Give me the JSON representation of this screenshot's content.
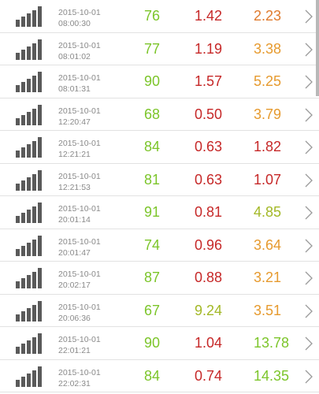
{
  "colors": {
    "green": "#7cc52a",
    "yellow_green": "#a3b826",
    "red": "#c62828",
    "orange": "#e69a2e",
    "icon": "#5a5a5a"
  },
  "icons": {
    "signal": "signal-strength-icon",
    "chevron": "chevron-right-icon"
  },
  "rows": [
    {
      "date": "2015-10-01",
      "time": "08:00:30",
      "v1": "76",
      "v1_color": "#7cc52a",
      "v2": "1.42",
      "v2_color": "#c62828",
      "v3": "2.23",
      "v3_color": "#e07b2e"
    },
    {
      "date": "2015-10-01",
      "time": "08:01:02",
      "v1": "77",
      "v1_color": "#7cc52a",
      "v2": "1.19",
      "v2_color": "#c62828",
      "v3": "3.38",
      "v3_color": "#e69a2e"
    },
    {
      "date": "2015-10-01",
      "time": "08:01:31",
      "v1": "90",
      "v1_color": "#7cc52a",
      "v2": "1.57",
      "v2_color": "#c62828",
      "v3": "5.25",
      "v3_color": "#e69a2e"
    },
    {
      "date": "2015-10-01",
      "time": "12:20:47",
      "v1": "68",
      "v1_color": "#7cc52a",
      "v2": "0.50",
      "v2_color": "#c62828",
      "v3": "3.79",
      "v3_color": "#e69a2e"
    },
    {
      "date": "2015-10-01",
      "time": "12:21:21",
      "v1": "84",
      "v1_color": "#7cc52a",
      "v2": "0.63",
      "v2_color": "#c62828",
      "v3": "1.82",
      "v3_color": "#c62828"
    },
    {
      "date": "2015-10-01",
      "time": "12:21:53",
      "v1": "81",
      "v1_color": "#7cc52a",
      "v2": "0.63",
      "v2_color": "#c62828",
      "v3": "1.07",
      "v3_color": "#c62828"
    },
    {
      "date": "2015-10-01",
      "time": "20:01:14",
      "v1": "91",
      "v1_color": "#7cc52a",
      "v2": "0.81",
      "v2_color": "#c62828",
      "v3": "4.85",
      "v3_color": "#a3b826"
    },
    {
      "date": "2015-10-01",
      "time": "20:01:47",
      "v1": "74",
      "v1_color": "#7cc52a",
      "v2": "0.96",
      "v2_color": "#c62828",
      "v3": "3.64",
      "v3_color": "#e69a2e"
    },
    {
      "date": "2015-10-01",
      "time": "20:02:17",
      "v1": "87",
      "v1_color": "#7cc52a",
      "v2": "0.88",
      "v2_color": "#c62828",
      "v3": "3.21",
      "v3_color": "#e69a2e"
    },
    {
      "date": "2015-10-01",
      "time": "20:06:36",
      "v1": "67",
      "v1_color": "#7cc52a",
      "v2": "9.24",
      "v2_color": "#a3b826",
      "v3": "3.51",
      "v3_color": "#e69a2e"
    },
    {
      "date": "2015-10-01",
      "time": "22:01:21",
      "v1": "90",
      "v1_color": "#7cc52a",
      "v2": "1.04",
      "v2_color": "#c62828",
      "v3": "13.78",
      "v3_color": "#7cc52a"
    },
    {
      "date": "2015-10-01",
      "time": "22:02:31",
      "v1": "84",
      "v1_color": "#7cc52a",
      "v2": "0.74",
      "v2_color": "#c62828",
      "v3": "14.35",
      "v3_color": "#7cc52a"
    }
  ]
}
